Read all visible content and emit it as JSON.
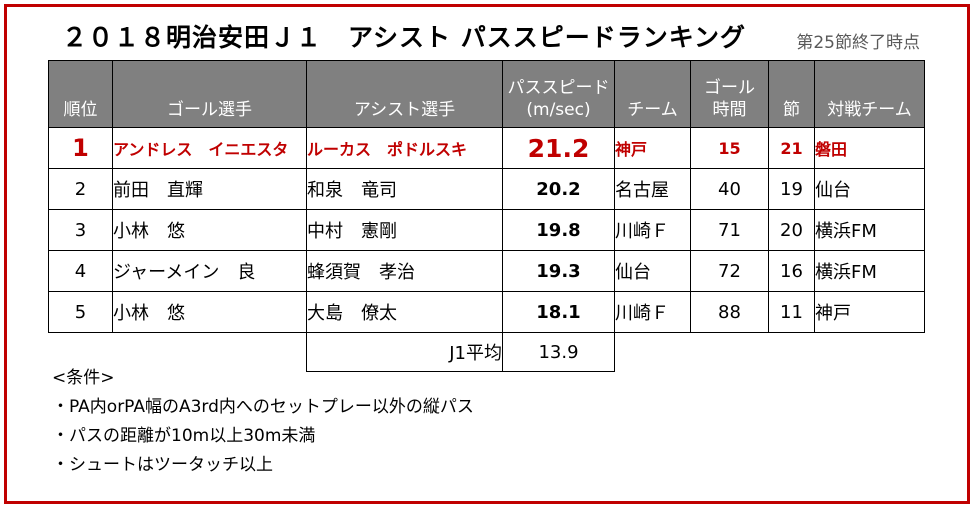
{
  "title": "２０１８明治安田Ｊ１　アシスト パススピードランキング",
  "as_of": "第25節終了時点",
  "colors": {
    "frame": "#c00000",
    "header_bg": "#808080",
    "highlight": "#c00000"
  },
  "table": {
    "headers": {
      "rank": "順位",
      "scorer": "ゴール選手",
      "assister": "アシスト選手",
      "speed_line1": "パススピード",
      "speed_line2": "(m/sec)",
      "team": "チーム",
      "time_line1": "ゴール",
      "time_line2": "時間",
      "matchday": "節",
      "opponent": "対戦チーム"
    },
    "rows": [
      {
        "rank": "1",
        "scorer": "アンドレス　イニエスタ",
        "assister": "ルーカス　ポドルスキ",
        "speed": "21.2",
        "team": "神戸",
        "time": "15",
        "matchday": "21",
        "opponent": "磐田"
      },
      {
        "rank": "2",
        "scorer": "前田　直輝",
        "assister": "和泉　竜司",
        "speed": "20.2",
        "team": "名古屋",
        "time": "40",
        "matchday": "19",
        "opponent": "仙台"
      },
      {
        "rank": "3",
        "scorer": "小林　悠",
        "assister": "中村　憲剛",
        "speed": "19.8",
        "team": "川崎Ｆ",
        "time": "71",
        "matchday": "20",
        "opponent": "横浜FM"
      },
      {
        "rank": "4",
        "scorer": "ジャーメイン　良",
        "assister": "蜂須賀　孝治",
        "speed": "19.3",
        "team": "仙台",
        "time": "72",
        "matchday": "16",
        "opponent": "横浜FM"
      },
      {
        "rank": "5",
        "scorer": "小林　悠",
        "assister": "大島　僚太",
        "speed": "18.1",
        "team": "川崎Ｆ",
        "time": "88",
        "matchday": "11",
        "opponent": "神戸"
      }
    ],
    "average": {
      "label": "J1平均",
      "value": "13.9"
    }
  },
  "conditions": {
    "heading": "<条件>",
    "items": [
      "・PA内orPA幅のA3rd内へのセットプレー以外の縦パス",
      "・パスの距離が10m以上30m未満",
      "・シュートはツータッチ以上"
    ]
  }
}
